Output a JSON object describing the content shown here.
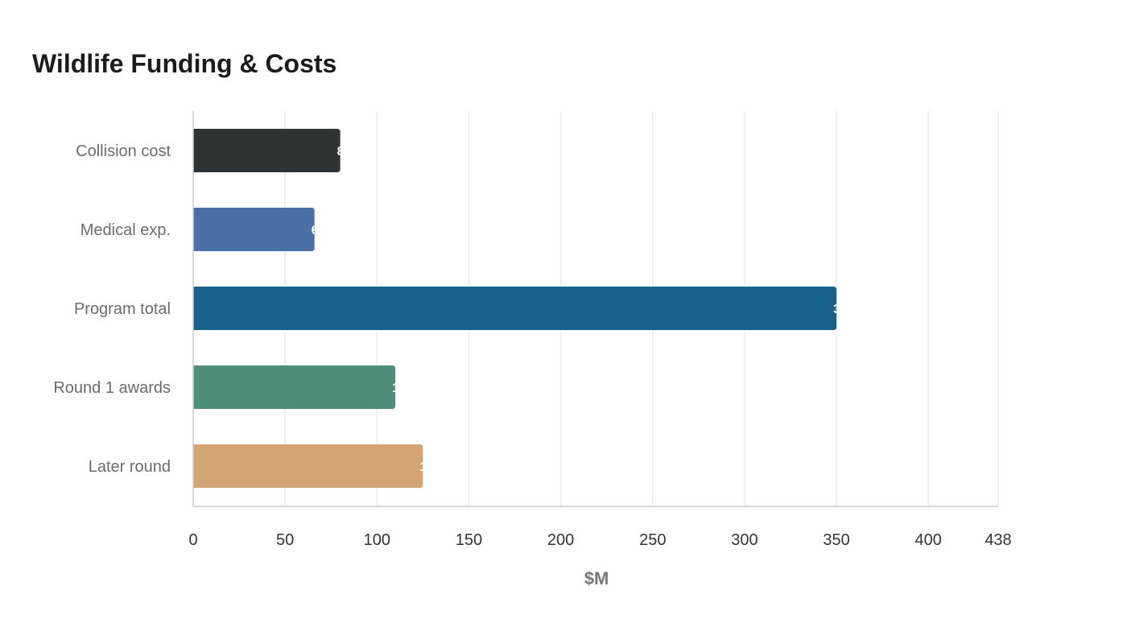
{
  "chart_data": {
    "type": "bar",
    "orientation": "horizontal",
    "title": "Wildlife Funding & Costs",
    "xlabel": "$M",
    "ylabel": "",
    "categories": [
      "Collision cost",
      "Medical exp.",
      "Program total",
      "Round 1 awards",
      "Later round"
    ],
    "values": [
      80,
      66,
      350,
      110,
      125
    ],
    "colors": [
      "#2e3436",
      "#4a70a5",
      "#186289",
      "#4e8d7b",
      "#d3a575"
    ],
    "xlim": [
      0,
      438
    ],
    "xticks": [
      0,
      50,
      100,
      150,
      200,
      250,
      300,
      350,
      400,
      438
    ],
    "grid": true,
    "legend": "none"
  }
}
